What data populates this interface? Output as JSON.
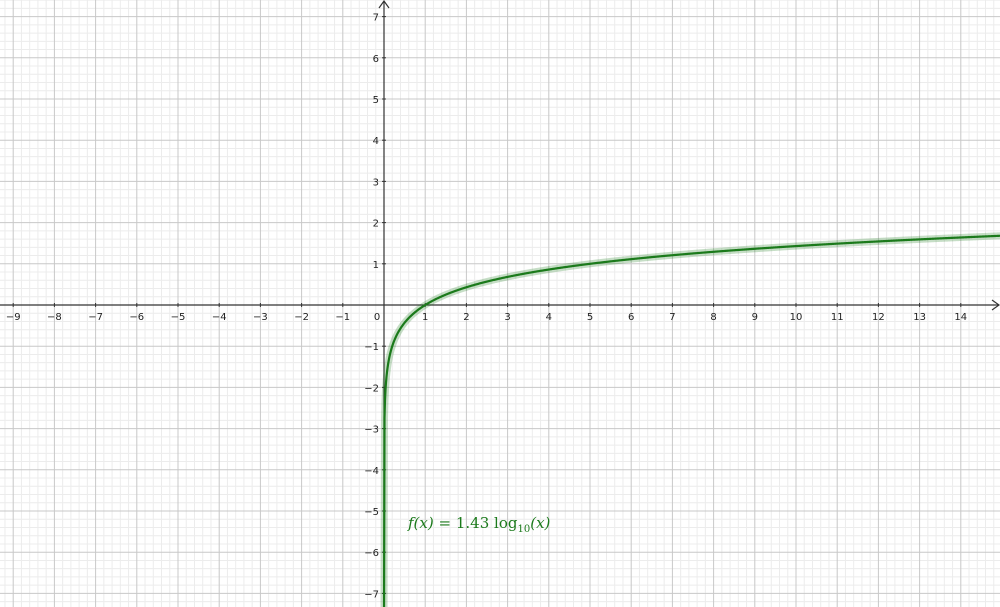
{
  "chart_data": {
    "type": "line",
    "title": "",
    "xlabel": "",
    "ylabel": "",
    "xlim": [
      -9.3,
      14.95
    ],
    "ylim": [
      -7.3,
      7.4
    ],
    "x_ticks": [
      -9,
      -8,
      -7,
      -6,
      -5,
      -4,
      -3,
      -2,
      -1,
      0,
      1,
      2,
      3,
      4,
      5,
      6,
      7,
      8,
      9,
      10,
      11,
      12,
      13,
      14
    ],
    "y_ticks": [
      -7,
      -6,
      -5,
      -4,
      -3,
      -2,
      -1,
      1,
      2,
      3,
      4,
      5,
      6,
      7
    ],
    "grid": true,
    "minor_grid_step": 0.2,
    "series": [
      {
        "function": "1.43*log10(x)",
        "color": "#1b7a1b"
      }
    ],
    "annotation": {
      "lhs": "f(x)",
      "eq": "=",
      "coef": "1.43",
      "fn": "log",
      "base": "10",
      "arg": "(x)"
    }
  }
}
